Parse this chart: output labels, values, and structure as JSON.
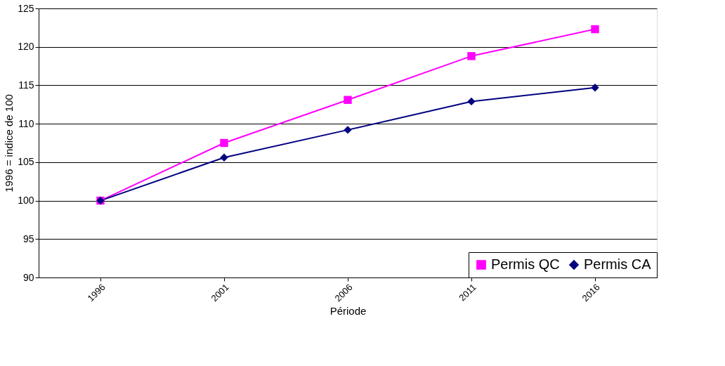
{
  "chart_data": {
    "type": "line",
    "xlabel": "Période",
    "ylabel": "1996 = indice de 100",
    "categories": [
      "1996",
      "2001",
      "2006",
      "2011",
      "2016"
    ],
    "series": [
      {
        "name": "Permis QC",
        "color": "#ff00ff",
        "marker": "square",
        "values": [
          100,
          107.5,
          113.1,
          118.8,
          122.3
        ]
      },
      {
        "name": "Permis CA",
        "color": "#000080",
        "marker": "diamond",
        "values": [
          100,
          105.6,
          109.2,
          112.9,
          114.7
        ]
      }
    ],
    "ylim": [
      90,
      125
    ],
    "yticks": [
      90,
      95,
      100,
      105,
      110,
      115,
      120,
      125
    ],
    "grid": "y",
    "legend": "bottom right"
  }
}
